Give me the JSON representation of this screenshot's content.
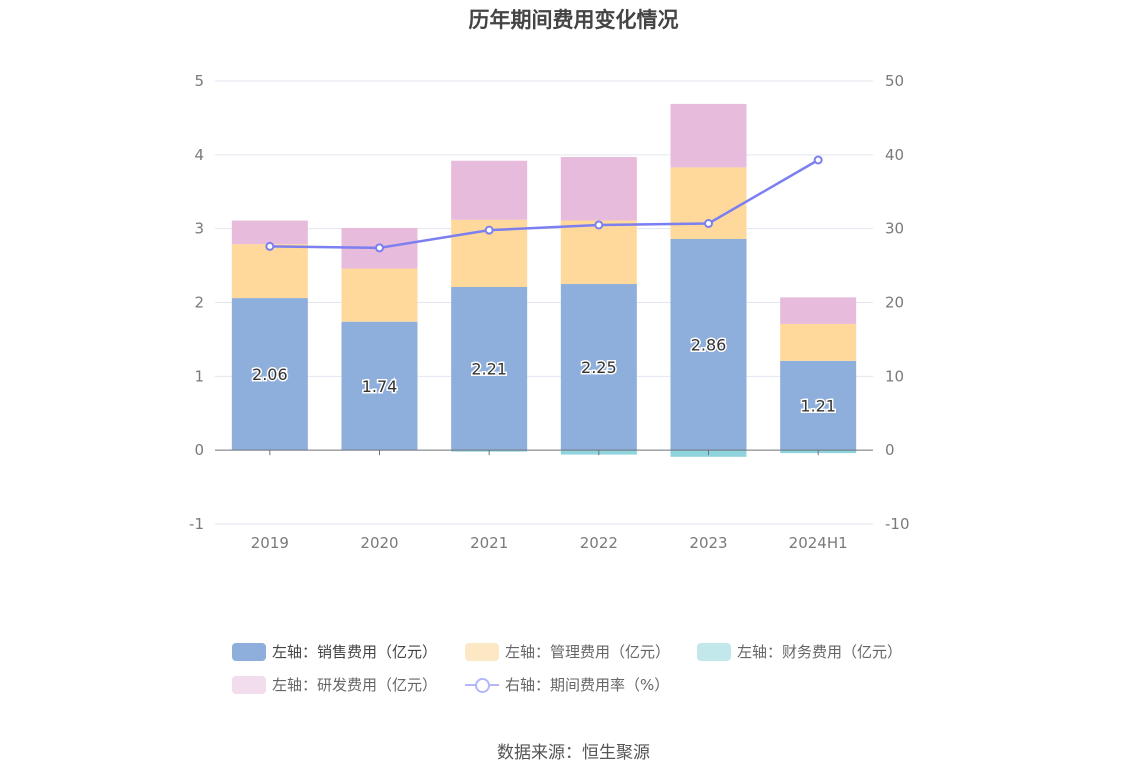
{
  "chart_data": {
    "type": "bar",
    "title": "历年期间费用变化情况",
    "categories": [
      "2019",
      "2020",
      "2021",
      "2022",
      "2023",
      "2024H1"
    ],
    "stacked": true,
    "series": [
      {
        "name": "左轴：销售费用（亿元）",
        "axis": "left",
        "values": [
          2.06,
          1.74,
          2.21,
          2.25,
          2.86,
          1.21
        ],
        "color": "#8eaedb",
        "show_labels": true
      },
      {
        "name": "左轴：管理费用（亿元）",
        "axis": "left",
        "values": [
          0.73,
          0.72,
          0.91,
          0.86,
          0.97,
          0.5
        ],
        "color": "#ffd99b"
      },
      {
        "name": "左轴：财务费用（亿元）",
        "axis": "left",
        "values": [
          0.0,
          0.0,
          -0.02,
          -0.06,
          -0.09,
          -0.04
        ],
        "color": "#8fd4dc"
      },
      {
        "name": "左轴：研发费用（亿元）",
        "axis": "left",
        "values": [
          0.32,
          0.55,
          0.8,
          0.86,
          0.86,
          0.36
        ],
        "color": "#e7bbdc"
      },
      {
        "name": "右轴：期间费用率（%）",
        "axis": "right",
        "type": "line",
        "values": [
          27.6,
          27.4,
          29.8,
          30.5,
          30.7,
          39.3
        ],
        "color": "#7b7ff0"
      }
    ],
    "left_axis": {
      "ylim": [
        -1,
        5
      ],
      "ticks": [
        "-1",
        "0",
        "1",
        "2",
        "3",
        "4",
        "5"
      ]
    },
    "right_axis": {
      "ylim": [
        -10,
        50
      ],
      "ticks": [
        "-10",
        "0",
        "10",
        "20",
        "30",
        "40",
        "50"
      ]
    },
    "grid": true,
    "legend_position": "bottom"
  },
  "legend": [
    {
      "label": "左轴：销售费用（亿元）",
      "color": "#8eaedb",
      "kind": "box"
    },
    {
      "label": "左轴：管理费用（亿元）",
      "color": "#fde8c6",
      "kind": "box"
    },
    {
      "label": "左轴：财务费用（亿元）",
      "color": "#c3e8ec",
      "kind": "box"
    },
    {
      "label": "左轴：研发费用（亿元）",
      "color": "#f2dded",
      "kind": "box"
    },
    {
      "label": "右轴：期间费用率（%）",
      "color": "#b3b6f8",
      "kind": "line"
    }
  ],
  "source": "数据来源：恒生聚源"
}
